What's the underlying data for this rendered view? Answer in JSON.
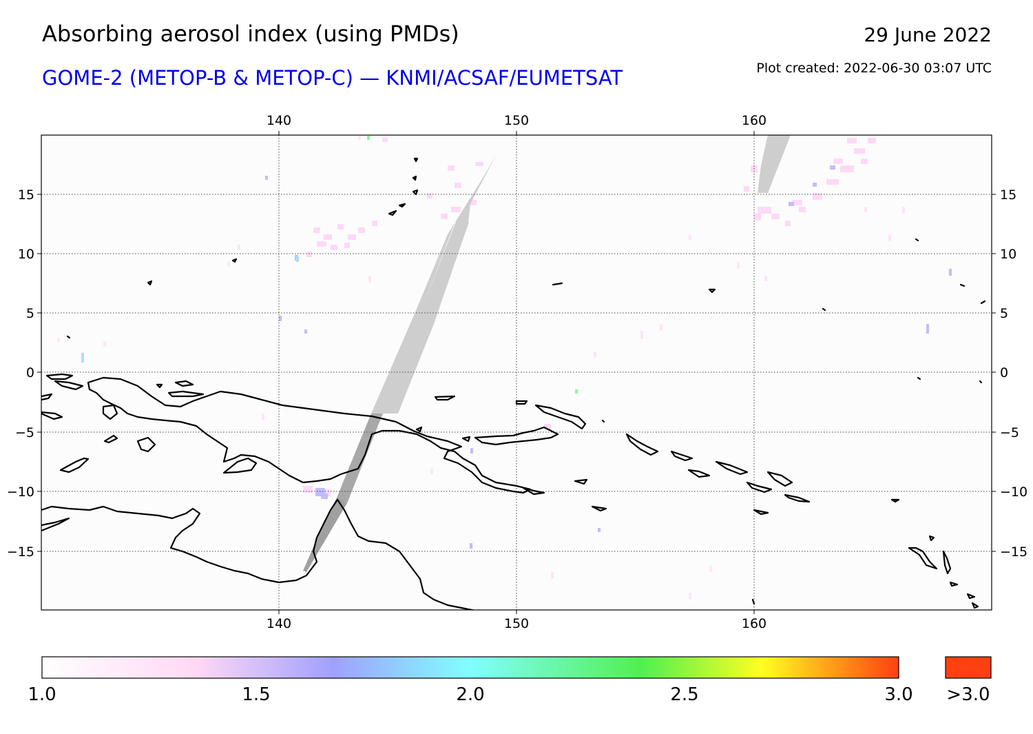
{
  "header": {
    "title": "Absorbing aerosol index (using PMDs)",
    "subtitle": "GOME-2 (METOP-B & METOP-C) — KNMI/ACSAF/EUMETSAT",
    "date": "29 June 2022",
    "plot_created": "Plot created: 2022-06-30 03:07 UTC"
  },
  "map": {
    "lon_range": [
      130,
      170
    ],
    "lat_range": [
      -20,
      20
    ],
    "lon_ticks": [
      "140",
      "150",
      "160"
    ],
    "lat_ticks": [
      "15",
      "10",
      "5",
      "0",
      "−5",
      "−10",
      "−15"
    ],
    "grid": true,
    "gridline_style": "dotted",
    "no_data_color": "#bbbbbb",
    "coastline_color": "#000000"
  },
  "colorbar": {
    "labels": [
      "1.0",
      "1.5",
      "2.0",
      "2.5",
      "3.0"
    ],
    "overflow_label": ">3.0",
    "overflow_color": "#ff4010",
    "stops": [
      "#ffffff",
      "#ffd8f4",
      "#a0a0ff",
      "#80ffff",
      "#50f050",
      "#ffff20",
      "#ff4010"
    ]
  }
}
